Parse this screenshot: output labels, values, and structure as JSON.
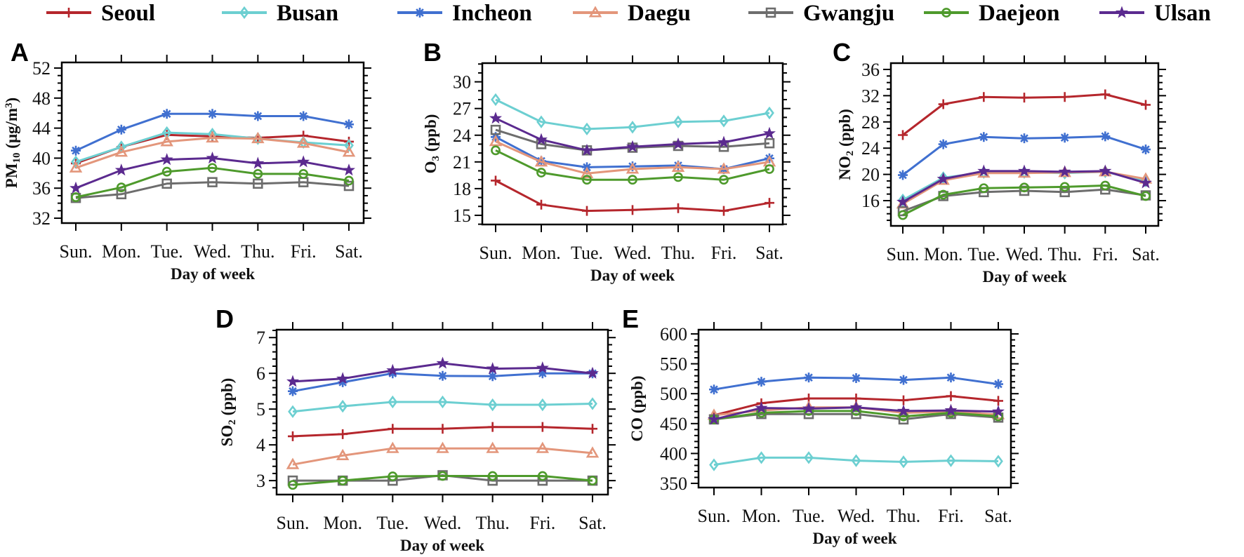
{
  "legend": {
    "placement": "top",
    "items": [
      {
        "name": "Seoul",
        "color": "#b5262c",
        "marker": "plus"
      },
      {
        "name": "Busan",
        "color": "#6ccfd1",
        "marker": "diamond"
      },
      {
        "name": "Incheon",
        "color": "#4070d0",
        "marker": "asterisk"
      },
      {
        "name": "Daegu",
        "color": "#e3967b",
        "marker": "triangle"
      },
      {
        "name": "Gwangju",
        "color": "#6d6d6d",
        "marker": "square"
      },
      {
        "name": "Daejeon",
        "color": "#4e9a2c",
        "marker": "circle"
      },
      {
        "name": "Ulsan",
        "color": "#5b2a8f",
        "marker": "star"
      }
    ]
  },
  "chart_data": [
    {
      "panel": "A",
      "type": "line",
      "categories": [
        "Sun.",
        "Mon.",
        "Tue.",
        "Wed.",
        "Thu.",
        "Fri.",
        "Sat."
      ],
      "xlabel": "Day of week",
      "ylabel": [
        {
          "t": "PM"
        },
        {
          "t": "10",
          "sub": true
        },
        {
          "t": " (μg/m"
        },
        {
          "t": "3",
          "sup": true
        },
        {
          "t": ")"
        }
      ],
      "ylim": [
        31.35,
        52.75
      ],
      "yticks": [
        32,
        36,
        40,
        44,
        48,
        52
      ],
      "yminor": 1,
      "grid": false,
      "series": [
        {
          "name": "Seoul",
          "values": [
            39.3,
            41.5,
            43.1,
            42.9,
            42.7,
            43.0,
            42.2
          ]
        },
        {
          "name": "Busan",
          "values": [
            39.5,
            41.5,
            43.4,
            43.2,
            42.6,
            42.1,
            41.7
          ]
        },
        {
          "name": "Incheon",
          "values": [
            41.0,
            43.8,
            45.9,
            45.9,
            45.6,
            45.6,
            44.5
          ]
        },
        {
          "name": "Daegu",
          "values": [
            38.7,
            40.8,
            42.2,
            42.7,
            42.6,
            42.0,
            40.8
          ]
        },
        {
          "name": "Gwangju",
          "values": [
            34.7,
            35.2,
            36.6,
            36.8,
            36.6,
            36.8,
            36.3
          ]
        },
        {
          "name": "Daejeon",
          "values": [
            34.8,
            36.1,
            38.2,
            38.7,
            37.9,
            37.9,
            37.0
          ]
        },
        {
          "name": "Ulsan",
          "values": [
            36.0,
            38.4,
            39.8,
            40.0,
            39.3,
            39.5,
            38.4
          ]
        }
      ]
    },
    {
      "panel": "B",
      "type": "line",
      "categories": [
        "Sun.",
        "Mon.",
        "Tue.",
        "Wed.",
        "Thu.",
        "Fri.",
        "Sat."
      ],
      "xlabel": "Day of week",
      "ylabel": [
        {
          "t": "O"
        },
        {
          "t": "3",
          "sub": true
        },
        {
          "t": " (ppb)"
        }
      ],
      "ylim": [
        13.97,
        32.1
      ],
      "yticks": [
        15,
        18,
        21,
        24,
        27,
        30
      ],
      "yminor": 1,
      "grid": false,
      "series": [
        {
          "name": "Seoul",
          "values": [
            18.9,
            16.2,
            15.5,
            15.6,
            15.8,
            15.5,
            16.4
          ]
        },
        {
          "name": "Busan",
          "values": [
            28.0,
            25.5,
            24.7,
            24.9,
            25.5,
            25.6,
            26.5
          ]
        },
        {
          "name": "Incheon",
          "values": [
            23.8,
            21.1,
            20.4,
            20.5,
            20.6,
            20.2,
            21.4
          ]
        },
        {
          "name": "Daegu",
          "values": [
            23.3,
            21.0,
            19.7,
            20.2,
            20.4,
            20.2,
            21.0
          ]
        },
        {
          "name": "Gwangju",
          "values": [
            24.6,
            23.0,
            22.3,
            22.6,
            22.8,
            22.7,
            23.1
          ]
        },
        {
          "name": "Daejeon",
          "values": [
            22.3,
            19.8,
            19.0,
            19.0,
            19.3,
            19.0,
            20.2
          ]
        },
        {
          "name": "Ulsan",
          "values": [
            25.9,
            23.5,
            22.3,
            22.7,
            23.0,
            23.2,
            24.2
          ]
        }
      ]
    },
    {
      "panel": "C",
      "type": "line",
      "categories": [
        "Sun.",
        "Mon.",
        "Tue.",
        "Wed.",
        "Thu.",
        "Fri.",
        "Sat."
      ],
      "xlabel": "Day of week",
      "ylabel": [
        {
          "t": "NO"
        },
        {
          "t": "2",
          "sub": true
        },
        {
          "t": " (ppb)"
        }
      ],
      "ylim": [
        12.15,
        36.96
      ],
      "yticks": [
        16,
        20,
        24,
        28,
        32,
        36
      ],
      "yminor": 1,
      "grid": false,
      "series": [
        {
          "name": "Seoul",
          "values": [
            26.0,
            30.7,
            31.8,
            31.7,
            31.8,
            32.2,
            30.6
          ]
        },
        {
          "name": "Busan",
          "values": [
            16.1,
            19.5,
            20.3,
            20.3,
            20.2,
            20.4,
            19.0
          ]
        },
        {
          "name": "Incheon",
          "values": [
            19.9,
            24.6,
            25.7,
            25.5,
            25.6,
            25.8,
            23.8
          ]
        },
        {
          "name": "Daegu",
          "values": [
            15.5,
            19.1,
            20.2,
            20.2,
            20.3,
            20.4,
            19.3
          ]
        },
        {
          "name": "Gwangju",
          "values": [
            14.4,
            16.7,
            17.3,
            17.5,
            17.3,
            17.7,
            16.8
          ]
        },
        {
          "name": "Daejeon",
          "values": [
            13.8,
            16.9,
            17.9,
            18.0,
            18.1,
            18.3,
            16.7
          ]
        },
        {
          "name": "Ulsan",
          "values": [
            15.8,
            19.3,
            20.5,
            20.5,
            20.4,
            20.5,
            18.7
          ]
        }
      ]
    },
    {
      "panel": "D",
      "type": "line",
      "categories": [
        "Sun.",
        "Mon.",
        "Tue.",
        "Wed.",
        "Thu.",
        "Fri.",
        "Sat."
      ],
      "xlabel": "Day of week",
      "ylabel": [
        {
          "t": "SO"
        },
        {
          "t": "2",
          "sub": true
        },
        {
          "t": " (ppb)"
        }
      ],
      "ylim": [
        2.61,
        7.22
      ],
      "yticks": [
        3,
        4,
        5,
        6,
        7
      ],
      "yminor": 0.2,
      "grid": false,
      "series": [
        {
          "name": "Seoul",
          "values": [
            4.24,
            4.3,
            4.45,
            4.45,
            4.5,
            4.5,
            4.45
          ]
        },
        {
          "name": "Busan",
          "values": [
            4.93,
            5.08,
            5.2,
            5.2,
            5.12,
            5.12,
            5.15
          ]
        },
        {
          "name": "Incheon",
          "values": [
            5.5,
            5.75,
            6.0,
            5.93,
            5.92,
            6.0,
            6.0
          ]
        },
        {
          "name": "Daegu",
          "values": [
            3.45,
            3.7,
            3.9,
            3.9,
            3.9,
            3.9,
            3.77
          ]
        },
        {
          "name": "Gwangju",
          "values": [
            3.0,
            3.0,
            3.0,
            3.15,
            3.0,
            3.0,
            3.0
          ]
        },
        {
          "name": "Daejeon",
          "values": [
            2.88,
            3.0,
            3.12,
            3.13,
            3.13,
            3.13,
            3.0
          ]
        },
        {
          "name": "Ulsan",
          "values": [
            5.77,
            5.85,
            6.08,
            6.28,
            6.13,
            6.15,
            6.0
          ]
        }
      ]
    },
    {
      "panel": "E",
      "type": "line",
      "categories": [
        "Sun.",
        "Mon.",
        "Tue.",
        "Wed.",
        "Thu.",
        "Fri.",
        "Sat."
      ],
      "xlabel": "Day of week",
      "ylabel": [
        {
          "t": "CO (ppb)"
        }
      ],
      "ylim": [
        343,
        607
      ],
      "yticks": [
        350,
        400,
        450,
        500,
        550,
        600
      ],
      "yminor": 10,
      "grid": false,
      "series": [
        {
          "name": "Seoul",
          "values": [
            464,
            484,
            492,
            492,
            489,
            496,
            488
          ]
        },
        {
          "name": "Busan",
          "values": [
            381,
            393,
            393,
            388,
            386,
            388,
            387
          ]
        },
        {
          "name": "Incheon",
          "values": [
            507,
            520,
            527,
            526,
            523,
            527,
            516
          ]
        },
        {
          "name": "Daegu",
          "values": [
            464,
            472,
            477,
            477,
            468,
            470,
            465
          ]
        },
        {
          "name": "Gwangju",
          "values": [
            457,
            466,
            466,
            466,
            457,
            466,
            460
          ]
        },
        {
          "name": "Daejeon",
          "values": [
            457,
            468,
            471,
            471,
            462,
            468,
            462
          ]
        },
        {
          "name": "Ulsan",
          "values": [
            457,
            476,
            475,
            477,
            471,
            472,
            470
          ]
        }
      ]
    }
  ]
}
